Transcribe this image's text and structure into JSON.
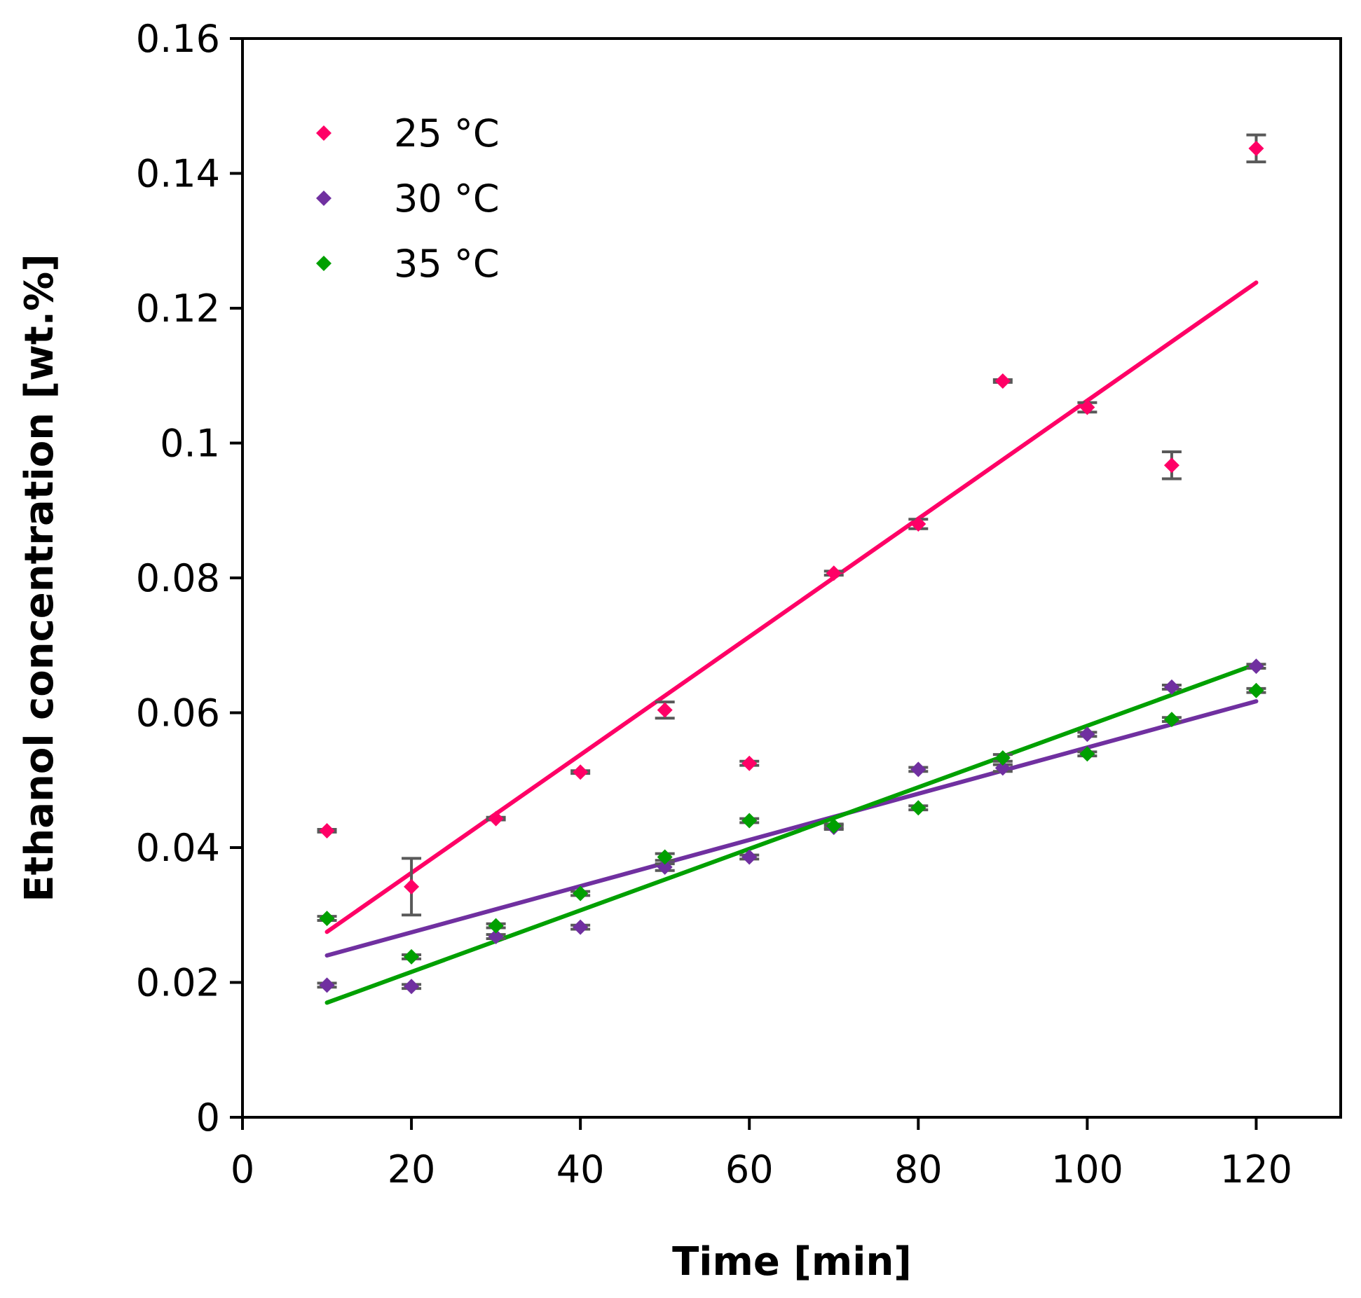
{
  "chart_data": {
    "type": "scatter",
    "title": "",
    "xlabel": "Time [min]",
    "ylabel": "Ethanol concentration [wt.%]",
    "xlim": [
      0,
      130
    ],
    "ylim": [
      0,
      0.16
    ],
    "xticks": [
      0,
      20,
      40,
      60,
      80,
      100,
      120
    ],
    "xtick_labels": [
      "0",
      "20",
      "40",
      "60",
      "80",
      "100",
      "120"
    ],
    "yticks": [
      0,
      0.02,
      0.04,
      0.06,
      0.08,
      0.1,
      0.12,
      0.14,
      0.16
    ],
    "ytick_labels": [
      "0",
      "0.02",
      "0.04",
      "0.06",
      "0.08",
      "0.1",
      "0.12",
      "0.14",
      "0.16"
    ],
    "grid": false,
    "legend_position": "top-left",
    "x": [
      10,
      20,
      30,
      40,
      50,
      60,
      70,
      80,
      90,
      100,
      110,
      120
    ],
    "series": [
      {
        "name": "25 °C",
        "color": "#ff0066",
        "marker": "diamond",
        "values": [
          0.0425,
          0.0342,
          0.0443,
          0.0512,
          0.0604,
          0.0525,
          0.0807,
          0.088,
          0.1092,
          0.1053,
          0.0967,
          0.1437
        ],
        "errors": [
          0.0002,
          0.0042,
          0.0002,
          0.0002,
          0.0012,
          0.0003,
          0.0003,
          0.0007,
          0.0002,
          0.0007,
          0.002,
          0.002
        ],
        "trendline": {
          "x": [
            10,
            120
          ],
          "y": [
            0.0275,
            0.1238
          ]
        }
      },
      {
        "name": "30 °C",
        "color": "#7030a0",
        "marker": "diamond",
        "values": [
          0.0196,
          0.0194,
          0.0268,
          0.0282,
          0.0371,
          0.0386,
          0.043,
          0.0516,
          0.0518,
          0.0568,
          0.0638,
          0.0669
        ],
        "errors": [
          0.0003,
          0.0003,
          0.0003,
          0.0003,
          0.0005,
          0.0003,
          0.0003,
          0.0003,
          0.0005,
          0.0003,
          0.0003,
          0.0003
        ],
        "trendline": {
          "x": [
            10,
            120
          ],
          "y": [
            0.024,
            0.0617
          ]
        }
      },
      {
        "name": "35 °C",
        "color": "#00a000",
        "marker": "diamond",
        "values": [
          0.0295,
          0.0238,
          0.0284,
          0.0332,
          0.0386,
          0.044,
          0.0432,
          0.0459,
          0.0533,
          0.0539,
          0.059,
          0.0633
        ],
        "errors": [
          0.0003,
          0.0003,
          0.0003,
          0.0003,
          0.0005,
          0.0003,
          0.0003,
          0.0003,
          0.0005,
          0.0003,
          0.0003,
          0.0003
        ],
        "trendline": {
          "x": [
            10,
            120
          ],
          "y": [
            0.017,
            0.0672
          ]
        }
      }
    ]
  }
}
